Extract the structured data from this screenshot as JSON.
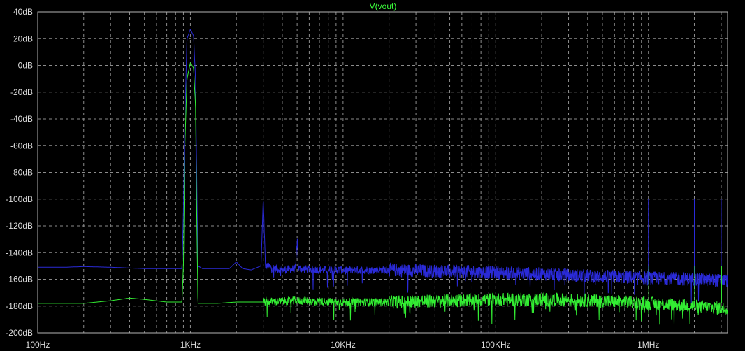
{
  "colors": {
    "background": "#000000",
    "axis_text": "#dcdcdc",
    "grid": "#8c8c8c",
    "frame": "#b4b4b4",
    "title": "#3cff3c",
    "series_blue": "#2a2ad8",
    "series_green": "#33ee33"
  },
  "chart_data": {
    "type": "line",
    "title": "V(vout)",
    "xlabel": "",
    "ylabel": "",
    "x_scale": "log",
    "xlim": [
      100,
      3300000
    ],
    "ylim": [
      -200,
      40
    ],
    "grid": true,
    "legend": "none",
    "x_tick_labels": [
      {
        "value": 100,
        "label": "100Hz"
      },
      {
        "value": 1000,
        "label": "1KHz"
      },
      {
        "value": 10000,
        "label": "10KHz"
      },
      {
        "value": 100000,
        "label": "100KHz"
      },
      {
        "value": 1000000,
        "label": "1MHz"
      }
    ],
    "y_tick_labels": [
      {
        "value": 40,
        "label": "40dB"
      },
      {
        "value": 20,
        "label": "20dB"
      },
      {
        "value": 0,
        "label": "0dB"
      },
      {
        "value": -20,
        "label": "-20dB"
      },
      {
        "value": -40,
        "label": "-40dB"
      },
      {
        "value": -60,
        "label": "-60dB"
      },
      {
        "value": -80,
        "label": "-80dB"
      },
      {
        "value": -100,
        "label": "-100dB"
      },
      {
        "value": -120,
        "label": "-120dB"
      },
      {
        "value": -140,
        "label": "-140dB"
      },
      {
        "value": -160,
        "label": "-160dB"
      },
      {
        "value": -180,
        "label": "-180dB"
      },
      {
        "value": -200,
        "label": "-200dB"
      }
    ],
    "series": [
      {
        "color": "#2a2ad8",
        "points": [
          [
            100,
            -151
          ],
          [
            150,
            -151
          ],
          [
            200,
            -150.5
          ],
          [
            300,
            -151
          ],
          [
            500,
            -152
          ],
          [
            700,
            -152
          ],
          [
            880,
            -152
          ],
          [
            900,
            -110
          ],
          [
            920,
            -40
          ],
          [
            950,
            20
          ],
          [
            1000,
            27
          ],
          [
            1050,
            22
          ],
          [
            1080,
            -10
          ],
          [
            1100,
            -80
          ],
          [
            1120,
            -150
          ],
          [
            1200,
            -152
          ],
          [
            1500,
            -152
          ],
          [
            1800,
            -152
          ],
          [
            2000,
            -147
          ],
          [
            2200,
            -152
          ],
          [
            2500,
            -153
          ],
          [
            2900,
            -150
          ],
          [
            3000,
            -100
          ],
          [
            3100,
            -150
          ],
          [
            4000,
            -153
          ],
          [
            4900,
            -152
          ],
          [
            5000,
            -125
          ],
          [
            5100,
            -152
          ],
          [
            7000,
            -153
          ],
          [
            10000,
            -153
          ],
          [
            20000,
            -153
          ],
          [
            50000,
            -154
          ],
          [
            100000,
            -155
          ],
          [
            200000,
            -156
          ],
          [
            500000,
            -158
          ],
          [
            1000000,
            -159
          ],
          [
            2000000,
            -160
          ],
          [
            3300000,
            -161
          ]
        ]
      },
      {
        "color": "#33ee33",
        "points": [
          [
            100,
            -178
          ],
          [
            200,
            -178
          ],
          [
            300,
            -176
          ],
          [
            400,
            -174
          ],
          [
            500,
            -175
          ],
          [
            700,
            -177
          ],
          [
            880,
            -177
          ],
          [
            900,
            -150
          ],
          [
            920,
            -60
          ],
          [
            950,
            -10
          ],
          [
            1000,
            2
          ],
          [
            1050,
            -2
          ],
          [
            1080,
            -30
          ],
          [
            1100,
            -110
          ],
          [
            1120,
            -178
          ],
          [
            1500,
            -178
          ],
          [
            2000,
            -177
          ],
          [
            3000,
            -177
          ],
          [
            5000,
            -176
          ],
          [
            10000,
            -177
          ],
          [
            20000,
            -177
          ],
          [
            50000,
            -176
          ],
          [
            100000,
            -175
          ],
          [
            200000,
            -175
          ],
          [
            500000,
            -176
          ],
          [
            1000000,
            -178
          ],
          [
            2000000,
            -180
          ],
          [
            3300000,
            -182
          ]
        ]
      }
    ],
    "spurs_hz": [
      1000000,
      2000000,
      3000000
    ]
  }
}
